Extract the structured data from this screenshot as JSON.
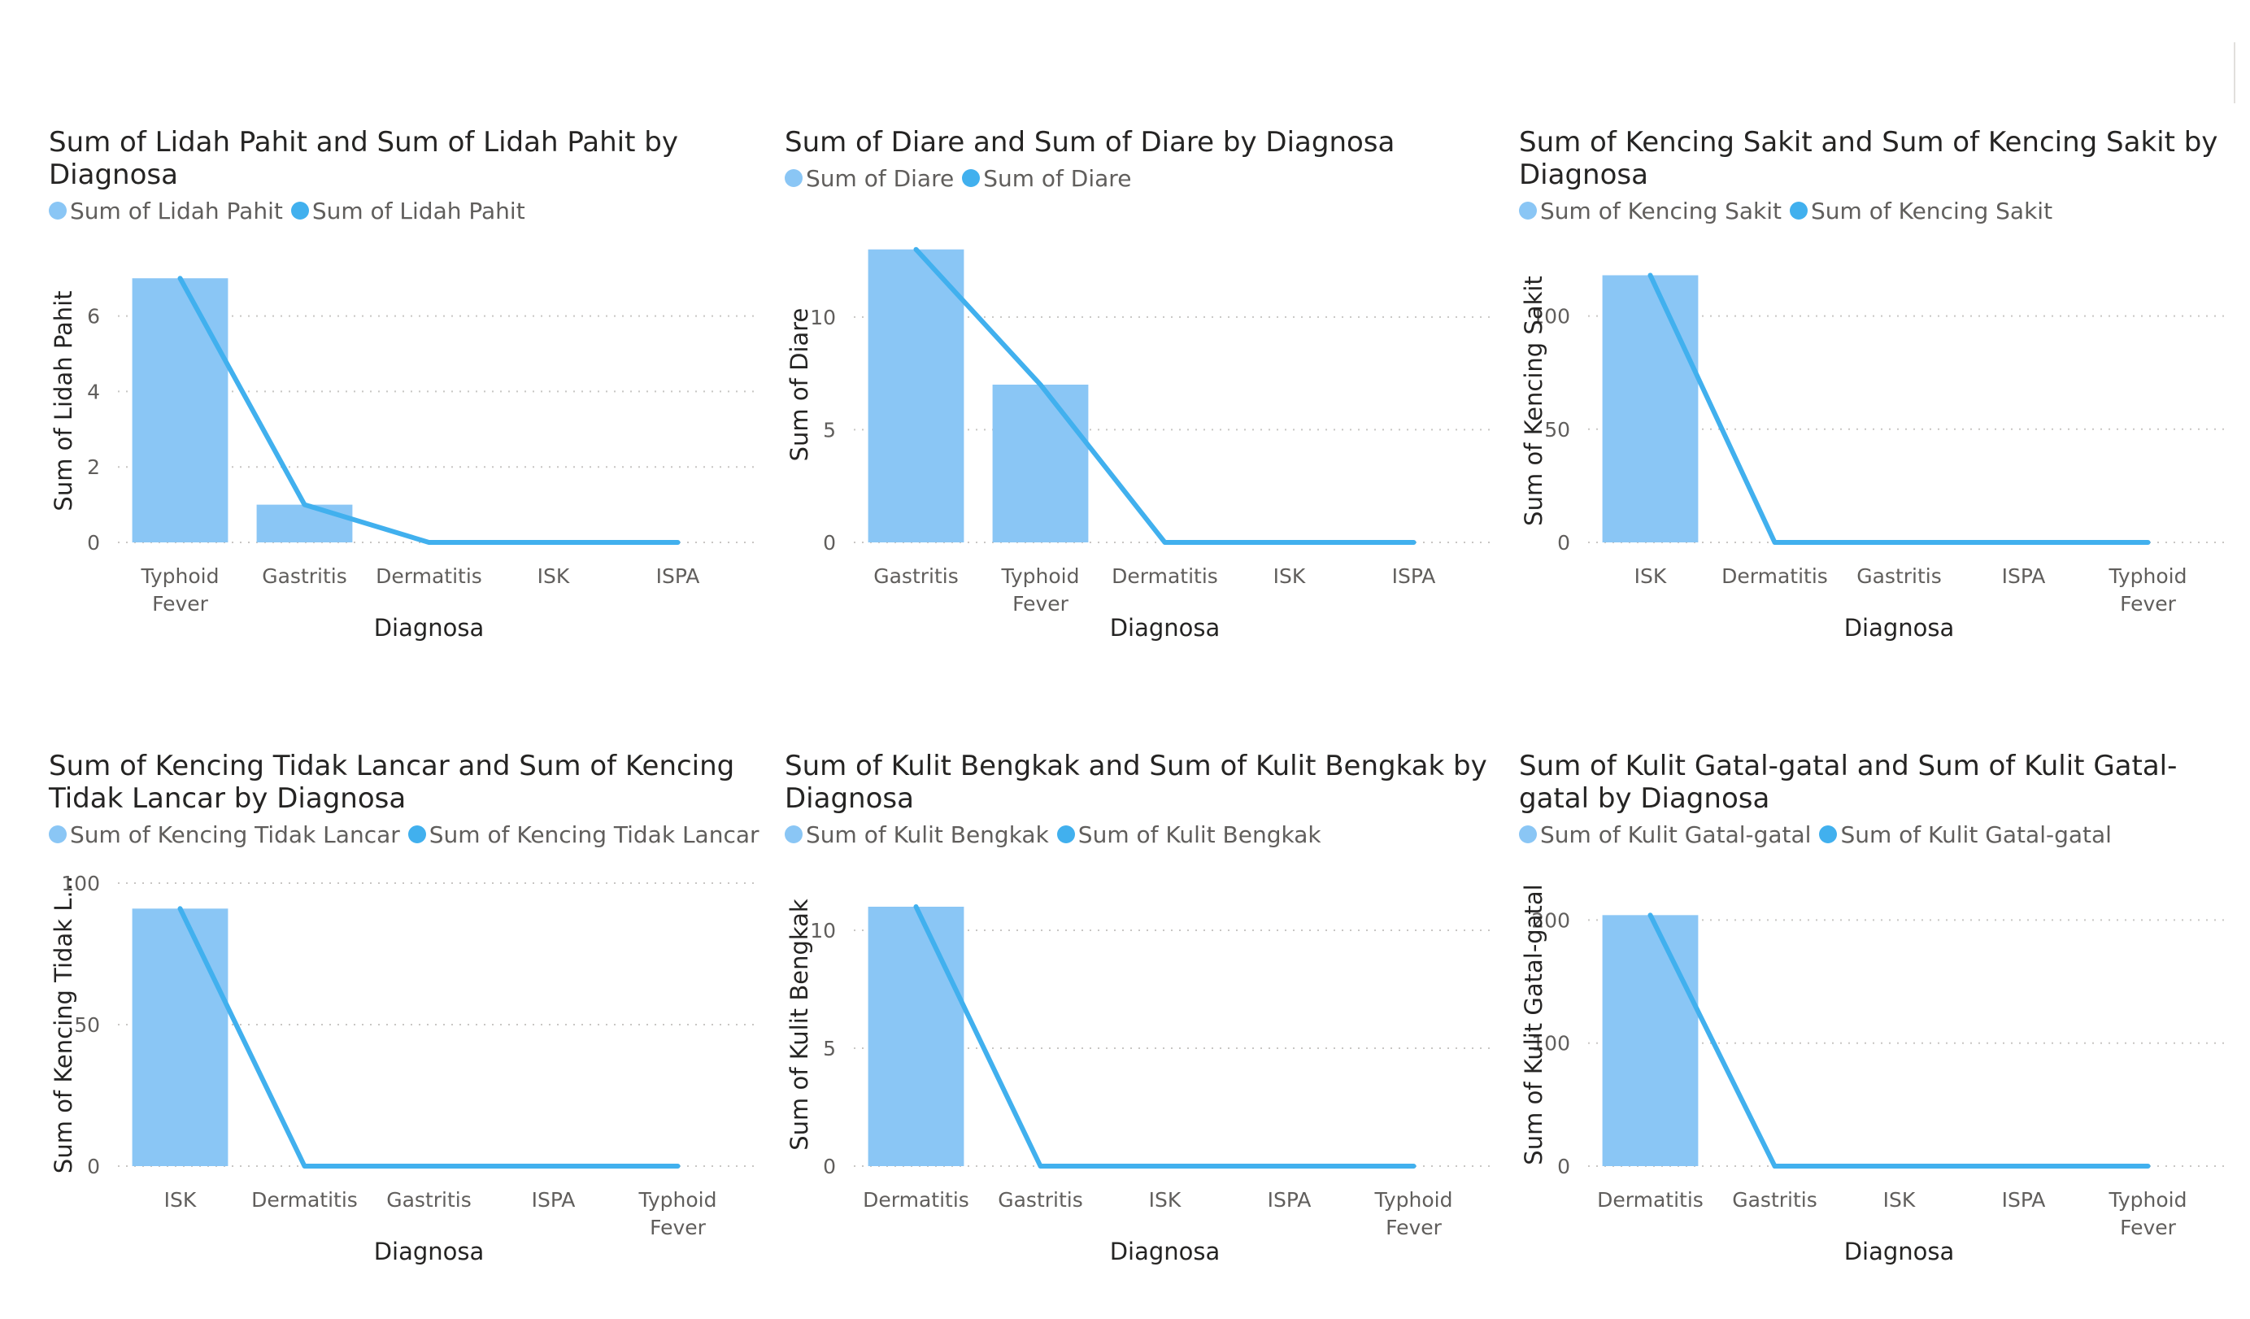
{
  "chart_data": [
    {
      "type": "bar",
      "title": "Sum of Lidah Pahit and Sum of Lidah Pahit by Diagnosa",
      "xlabel": "Diagnosa",
      "ylabel": "Sum of Lidah Pahit",
      "categories": [
        "Typhoid Fever",
        "Gastritis",
        "Dermatitis",
        "ISK",
        "ISPA"
      ],
      "series": [
        {
          "name": "Sum of Lidah Pahit",
          "kind": "bar",
          "color": "#8ac6f5",
          "values": [
            7,
            1,
            0,
            0,
            0
          ]
        },
        {
          "name": "Sum of Lidah Pahit",
          "kind": "line",
          "color": "#41b0ee",
          "values": [
            7,
            1,
            0,
            0,
            0
          ]
        }
      ],
      "ylim": [
        0,
        7.5
      ],
      "yticks": [
        0,
        2,
        4,
        6
      ],
      "grid": true,
      "legend_position": "top-left"
    },
    {
      "type": "bar",
      "title": "Sum of Diare and Sum of Diare by Diagnosa",
      "xlabel": "Diagnosa",
      "ylabel": "Sum of Diare",
      "categories": [
        "Gastritis",
        "Typhoid Fever",
        "Dermatitis",
        "ISK",
        "ISPA"
      ],
      "series": [
        {
          "name": "Sum of Diare",
          "kind": "bar",
          "color": "#8ac6f5",
          "values": [
            13,
            7,
            0,
            0,
            0
          ]
        },
        {
          "name": "Sum of Diare",
          "kind": "line",
          "color": "#41b0ee",
          "values": [
            13,
            7,
            0,
            0,
            0
          ]
        }
      ],
      "ylim": [
        0,
        14
      ],
      "yticks": [
        0,
        5,
        10
      ],
      "grid": true,
      "legend_position": "top-left"
    },
    {
      "type": "bar",
      "title": "Sum of Kencing Sakit and Sum of Kencing Sakit by Diagnosa",
      "xlabel": "Diagnosa",
      "ylabel": "Sum of Kencing Sakit",
      "categories": [
        "ISK",
        "Dermatitis",
        "Gastritis",
        "ISPA",
        "Typhoid Fever"
      ],
      "series": [
        {
          "name": "Sum of Kencing Sakit",
          "kind": "bar",
          "color": "#8ac6f5",
          "values": [
            118,
            0,
            0,
            0,
            0
          ]
        },
        {
          "name": "Sum of Kencing Sakit",
          "kind": "line",
          "color": "#41b0ee",
          "values": [
            118,
            0,
            0,
            0,
            0
          ]
        }
      ],
      "ylim": [
        0,
        125
      ],
      "yticks": [
        0,
        50,
        100
      ],
      "grid": true,
      "legend_position": "top-left"
    },
    {
      "type": "bar",
      "title": "Sum of Kencing Tidak Lancar and Sum of Kencing Tidak Lancar by Diagnosa",
      "xlabel": "Diagnosa",
      "ylabel": "Sum of Kencing Tidak L...",
      "categories": [
        "ISK",
        "Dermatitis",
        "Gastritis",
        "ISPA",
        "Typhoid Fever"
      ],
      "series": [
        {
          "name": "Sum of Kencing Tidak Lancar",
          "kind": "bar",
          "color": "#8ac6f5",
          "values": [
            91,
            0,
            0,
            0,
            0
          ]
        },
        {
          "name": "Sum of Kencing Tidak Lancar",
          "kind": "line",
          "color": "#41b0ee",
          "values": [
            91,
            0,
            0,
            0,
            0
          ]
        }
      ],
      "ylim": [
        0,
        100
      ],
      "yticks": [
        0,
        50,
        100
      ],
      "grid": true,
      "legend_position": "top-left"
    },
    {
      "type": "bar",
      "title": "Sum of Kulit Bengkak and Sum of Kulit Bengkak by Diagnosa",
      "xlabel": "Diagnosa",
      "ylabel": "Sum of Kulit Bengkak",
      "categories": [
        "Dermatitis",
        "Gastritis",
        "ISK",
        "ISPA",
        "Typhoid Fever"
      ],
      "series": [
        {
          "name": "Sum of Kulit Bengkak",
          "kind": "bar",
          "color": "#8ac6f5",
          "values": [
            11,
            0,
            0,
            0,
            0
          ]
        },
        {
          "name": "Sum of Kulit Bengkak",
          "kind": "line",
          "color": "#41b0ee",
          "values": [
            11,
            0,
            0,
            0,
            0
          ]
        }
      ],
      "ylim": [
        0,
        12
      ],
      "yticks": [
        0,
        5,
        10
      ],
      "grid": true,
      "legend_position": "top-left"
    },
    {
      "type": "bar",
      "title": "Sum of Kulit Gatal-gatal and Sum of Kulit Gatal-gatal by Diagnosa",
      "xlabel": "Diagnosa",
      "ylabel": "Sum of Kulit Gatal-gatal",
      "categories": [
        "Dermatitis",
        "Gastritis",
        "ISK",
        "ISPA",
        "Typhoid Fever"
      ],
      "series": [
        {
          "name": "Sum of Kulit Gatal-gatal",
          "kind": "bar",
          "color": "#8ac6f5",
          "values": [
            204,
            0,
            0,
            0,
            0
          ]
        },
        {
          "name": "Sum of Kulit Gatal-gatal",
          "kind": "line",
          "color": "#41b0ee",
          "values": [
            204,
            0,
            0,
            0,
            0
          ]
        }
      ],
      "ylim": [
        0,
        230
      ],
      "yticks": [
        0,
        100,
        200
      ],
      "grid": true,
      "legend_position": "top-left"
    }
  ]
}
